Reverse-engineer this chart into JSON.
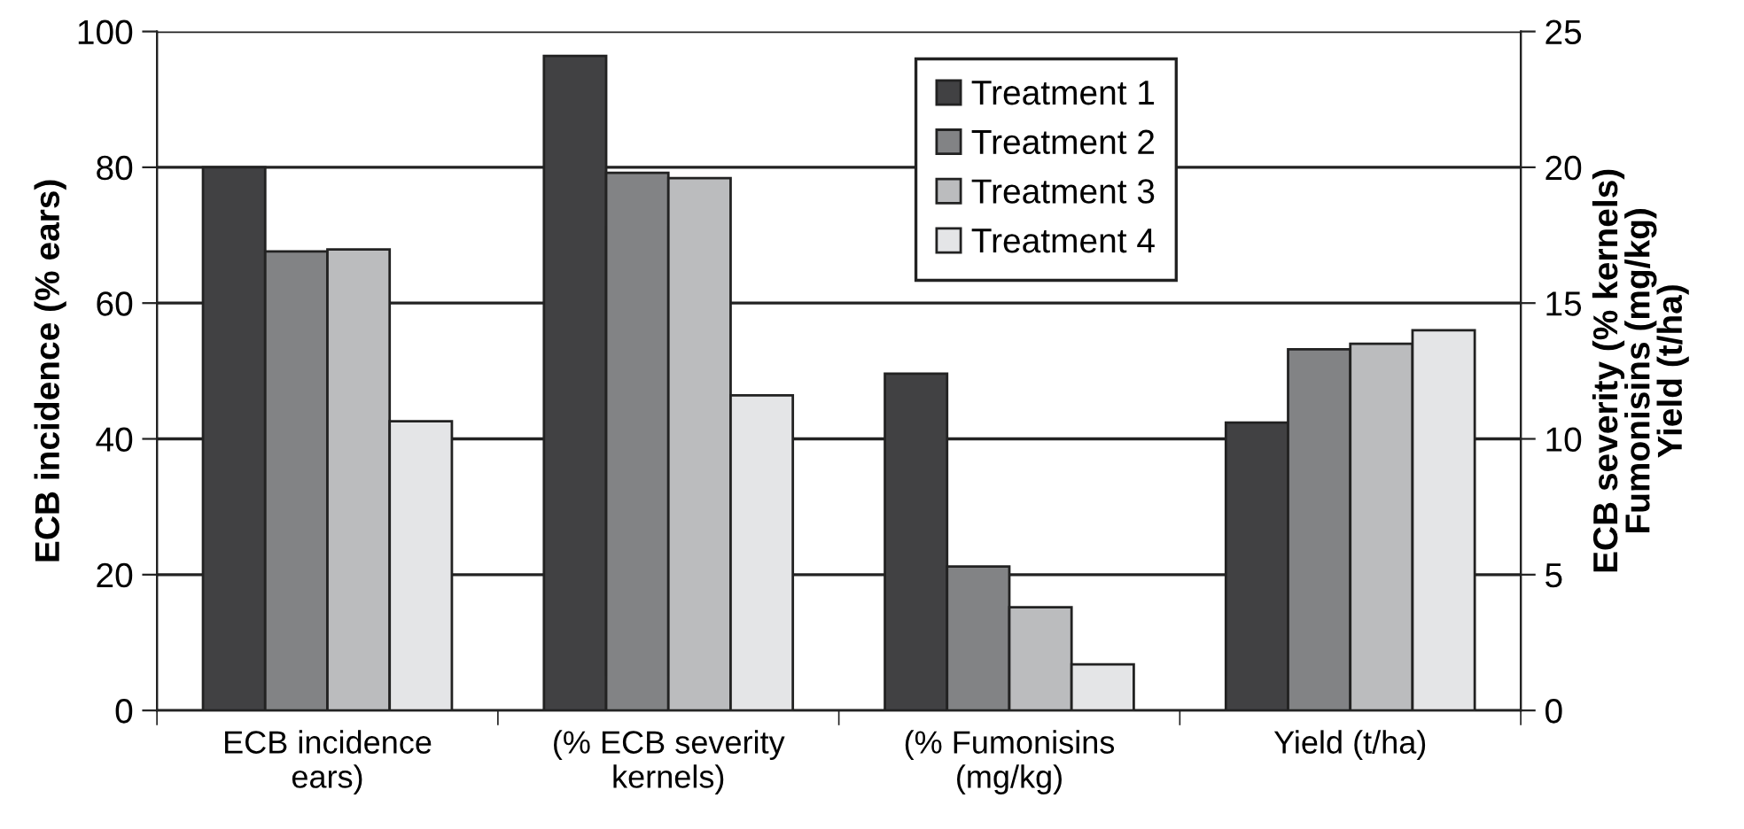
{
  "chart_data": {
    "type": "bar",
    "categories": [
      "ECB incidence\nears)",
      "(% ECB severity\nkernels)",
      "(% Fumonisins\n(mg/kg)",
      "Yield (t/ha)"
    ],
    "series": [
      {
        "name": "Treatment 1",
        "color": "#414143",
        "values": [
          80,
          null,
          null,
          null
        ]
      },
      {
        "name": "Treatment 2",
        "color": "#828385",
        "values": [
          67.6,
          null,
          null,
          null
        ]
      },
      {
        "name": "Treatment 3",
        "color": "#bbbcbe",
        "values": [
          67.9,
          null,
          null,
          null
        ]
      },
      {
        "name": "Treatment 4",
        "color": "#e4e5e7",
        "values": [
          42.6,
          null,
          null,
          null
        ]
      },
      {
        "color": "#414143",
        "axis": "y2",
        "values": [
          null,
          24.1,
          12.4,
          10.6
        ]
      },
      {
        "color": "#828385",
        "axis": "y2",
        "values": [
          null,
          19.8,
          5.3,
          13.3
        ]
      },
      {
        "color": "#bbbcbe",
        "axis": "y2",
        "values": [
          null,
          19.6,
          3.8,
          13.5
        ]
      },
      {
        "color": "#e4e5e7",
        "axis": "y2",
        "values": [
          null,
          11.6,
          1.7,
          14.0
        ]
      }
    ],
    "ylabel": "ECB incidence (% ears)",
    "y2label": "ECB severity (% kernels)\nFumonisins (mg/kg)\nYield (t/ha)",
    "ylim": [
      0,
      100
    ],
    "yticks": [
      0,
      20,
      40,
      60,
      80,
      100
    ],
    "y2lim": [
      0,
      25
    ],
    "y2ticks": [
      0,
      5,
      10,
      15,
      20,
      25
    ],
    "grid": "y",
    "legend": "top right"
  }
}
